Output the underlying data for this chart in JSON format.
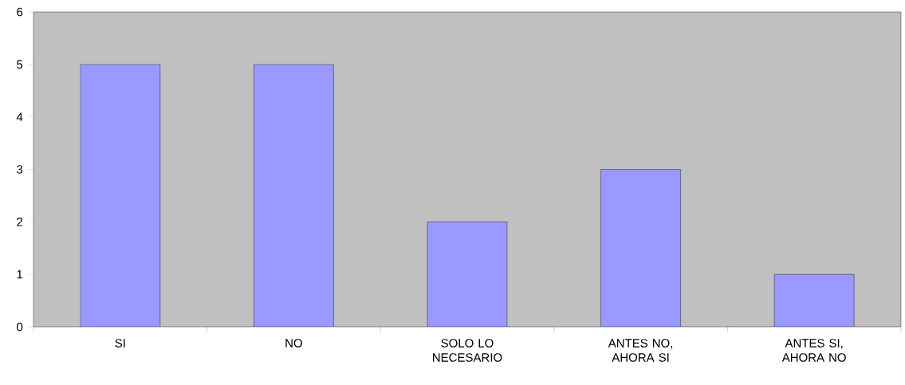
{
  "chart_data": {
    "type": "bar",
    "categories": [
      "SI",
      "NO",
      "SOLO LO NECESARIO",
      "ANTES NO, AHORA SI",
      "ANTES SI, AHORA NO"
    ],
    "values": [
      5,
      5,
      2,
      3,
      1
    ],
    "color": "#9999ff",
    "ylim": [
      0,
      6
    ],
    "yticks": [
      0,
      1,
      2,
      3,
      4,
      5,
      6
    ]
  }
}
